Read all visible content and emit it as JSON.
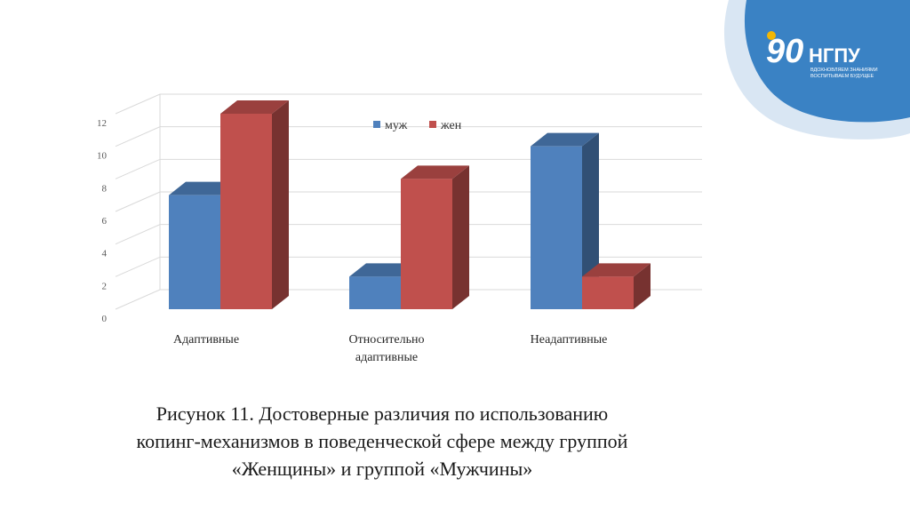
{
  "slide": {
    "caption_lines": [
      "Рисунок 11. Достоверные различия по использованию",
      "копинг-механизмов в поведенческой сфере между группой",
      "«Женщины» и группой «Мужчины»"
    ]
  },
  "logo": {
    "number": "90",
    "name": "НГПУ",
    "tagline_1": "ВДОХНОВЛЯЕМ ЗНАНИЯМИ",
    "tagline_2": "ВОСПИТЫВАЕМ БУДУЩЕЕ"
  },
  "colors": {
    "muzh": "#4f81bd",
    "zhen": "#c0504d",
    "logo_blue": "#1f6fb6",
    "logo_yellow": "#f2b705"
  },
  "chart_data": {
    "type": "bar",
    "style": "3d-clustered-column",
    "categories": [
      [
        "Адаптивные"
      ],
      [
        "Относительно",
        "адаптивные"
      ],
      [
        "Неадаптивные"
      ]
    ],
    "series": [
      {
        "name": "муж",
        "values": [
          7,
          2,
          10
        ]
      },
      {
        "name": "жен",
        "values": [
          12,
          8,
          2
        ]
      }
    ],
    "ylim": [
      0,
      12
    ],
    "yticks": [
      0,
      2,
      4,
      6,
      8,
      10,
      12
    ],
    "grid": true,
    "legend": "top-center"
  }
}
